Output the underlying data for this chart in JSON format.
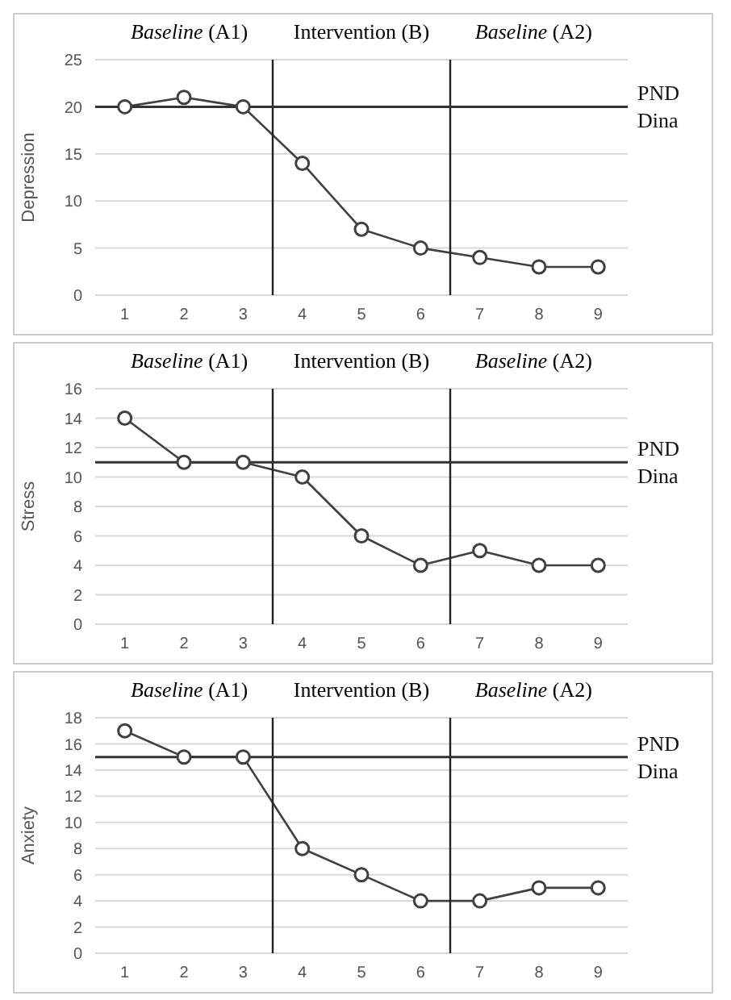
{
  "chart_data": [
    {
      "type": "line",
      "ylabel": "Depression",
      "annotations": [
        "Baseline (A1)",
        "Intervention (B)",
        "Baseline (A2)"
      ],
      "x": [
        1,
        2,
        3,
        4,
        5,
        6,
        7,
        8,
        9
      ],
      "xlim": [
        0.5,
        9.5
      ],
      "xticks": [
        1,
        2,
        3,
        4,
        5,
        6,
        7,
        8,
        9
      ],
      "ylim": [
        0,
        25
      ],
      "yticks": [
        0,
        5,
        10,
        15,
        20,
        25
      ],
      "grid": "y",
      "marker": "circle",
      "legend": false,
      "series": [
        {
          "color": "#404040",
          "values": [
            20,
            21,
            20,
            14,
            7,
            5,
            4,
            3,
            3
          ]
        }
      ],
      "ref_lines": [
        {
          "axis": "x",
          "value": 3.5
        },
        {
          "axis": "x",
          "value": 6.5
        },
        {
          "axis": "y",
          "value": 20,
          "label": "PND Dina"
        }
      ]
    },
    {
      "type": "line",
      "ylabel": "Stress",
      "annotations": [
        "Baseline (A1)",
        "Intervention (B)",
        "Baseline (A2)"
      ],
      "x": [
        1,
        2,
        3,
        4,
        5,
        6,
        7,
        8,
        9
      ],
      "xlim": [
        0.5,
        9.5
      ],
      "xticks": [
        1,
        2,
        3,
        4,
        5,
        6,
        7,
        8,
        9
      ],
      "ylim": [
        0,
        16
      ],
      "yticks": [
        0,
        2,
        4,
        6,
        8,
        10,
        12,
        14,
        16
      ],
      "grid": "y",
      "marker": "circle",
      "legend": false,
      "series": [
        {
          "color": "#404040",
          "values": [
            14,
            11,
            11,
            10,
            6,
            4,
            5,
            4,
            4
          ]
        }
      ],
      "ref_lines": [
        {
          "axis": "x",
          "value": 3.5
        },
        {
          "axis": "x",
          "value": 6.5
        },
        {
          "axis": "y",
          "value": 11,
          "label": "PND Dina"
        }
      ]
    },
    {
      "type": "line",
      "ylabel": "Anxiety",
      "annotations": [
        "Baseline (A1)",
        "Intervention (B)",
        "Baseline (A2)"
      ],
      "x": [
        1,
        2,
        3,
        4,
        5,
        6,
        7,
        8,
        9
      ],
      "xlim": [
        0.5,
        9.5
      ],
      "xticks": [
        1,
        2,
        3,
        4,
        5,
        6,
        7,
        8,
        9
      ],
      "ylim": [
        0,
        18
      ],
      "yticks": [
        0,
        2,
        4,
        6,
        8,
        10,
        12,
        14,
        16,
        18
      ],
      "grid": "y",
      "marker": "circle",
      "legend": false,
      "series": [
        {
          "color": "#404040",
          "values": [
            17,
            15,
            15,
            8,
            6,
            4,
            4,
            5,
            5
          ]
        }
      ],
      "ref_lines": [
        {
          "axis": "x",
          "value": 3.5
        },
        {
          "axis": "x",
          "value": 6.5
        },
        {
          "axis": "y",
          "value": 15,
          "label": "PND Dina"
        }
      ]
    }
  ]
}
